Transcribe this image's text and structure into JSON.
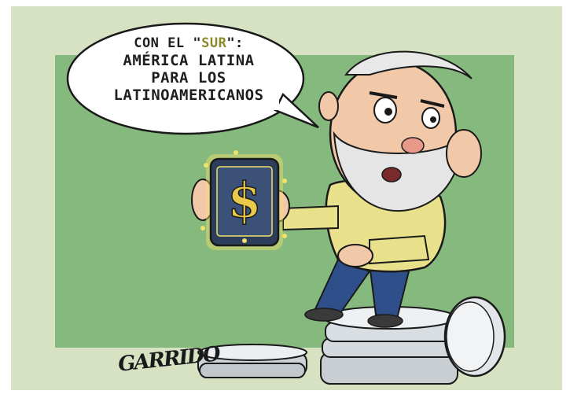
{
  "cartoon": {
    "speech_bubble": {
      "line1_prefix": "CON EL \"",
      "line1_emphasis": "SUR",
      "line1_suffix": "\":",
      "line2": "AMÉRICA LATINA",
      "line3": "PARA LOS",
      "line4": "LATINOAMERICANOS"
    },
    "signature": "GARRIDO",
    "phone_symbol": "$",
    "colors": {
      "outer_background": "#d6e2c2",
      "inner_background": "#86b97d",
      "shirt": "#e8e08a",
      "pants": "#2f4f8a",
      "coins": "#d9dde0",
      "phone_glow": "#f3e26a",
      "emphasis_text": "#8a8a2a"
    }
  }
}
